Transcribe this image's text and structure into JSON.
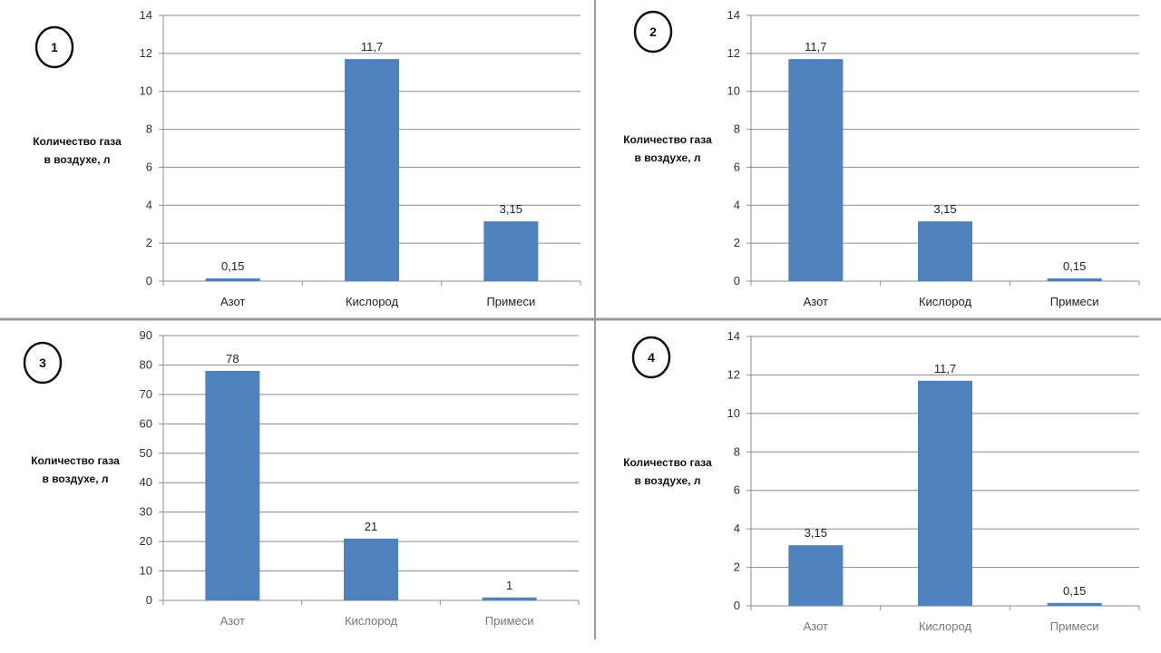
{
  "colors": {
    "bar": "#4f81bd",
    "grid": "#8c8c8c",
    "divider": "#9a9a9a"
  },
  "chart_data": [
    {
      "type": "bar",
      "panel_label": "1",
      "ylabel": [
        "Количество газа",
        "в воздухе, л"
      ],
      "categories": [
        "Азот",
        "Кислород",
        "Примеси"
      ],
      "values": [
        0.15,
        11.7,
        3.15
      ],
      "value_labels": [
        "0,15",
        "11,7",
        "3,15"
      ],
      "ylim": [
        0,
        14
      ],
      "ytick_step": 2,
      "yticks": [
        "0",
        "2",
        "4",
        "6",
        "8",
        "10",
        "12",
        "14"
      ],
      "grid": true
    },
    {
      "type": "bar",
      "panel_label": "2",
      "ylabel": [
        "Количество газа",
        "в воздухе, л"
      ],
      "categories": [
        "Азот",
        "Кислород",
        "Примеси"
      ],
      "values": [
        11.7,
        3.15,
        0.15
      ],
      "value_labels": [
        "11,7",
        "3,15",
        "0,15"
      ],
      "ylim": [
        0,
        14
      ],
      "ytick_step": 2,
      "yticks": [
        "0",
        "2",
        "4",
        "6",
        "8",
        "10",
        "12",
        "14"
      ],
      "grid": true
    },
    {
      "type": "bar",
      "panel_label": "3",
      "ylabel": [
        "Количество газа",
        "в воздухе, л"
      ],
      "categories": [
        "Азот",
        "Кислород",
        "Примеси"
      ],
      "values": [
        78,
        21,
        1
      ],
      "value_labels": [
        "78",
        "21",
        "1"
      ],
      "ylim": [
        0,
        90
      ],
      "ytick_step": 10,
      "yticks": [
        "0",
        "10",
        "20",
        "30",
        "40",
        "50",
        "60",
        "70",
        "80",
        "90"
      ],
      "grid": true
    },
    {
      "type": "bar",
      "panel_label": "4",
      "ylabel": [
        "Количество газа",
        "в воздухе, л"
      ],
      "categories": [
        "Азот",
        "Кислород",
        "Примеси"
      ],
      "values": [
        3.15,
        11.7,
        0.15
      ],
      "value_labels": [
        "3,15",
        "11,7",
        "0,15"
      ],
      "ylim": [
        0,
        14
      ],
      "ytick_step": 2,
      "yticks": [
        "0",
        "2",
        "4",
        "6",
        "8",
        "10",
        "12",
        "14"
      ],
      "grid": true
    }
  ]
}
